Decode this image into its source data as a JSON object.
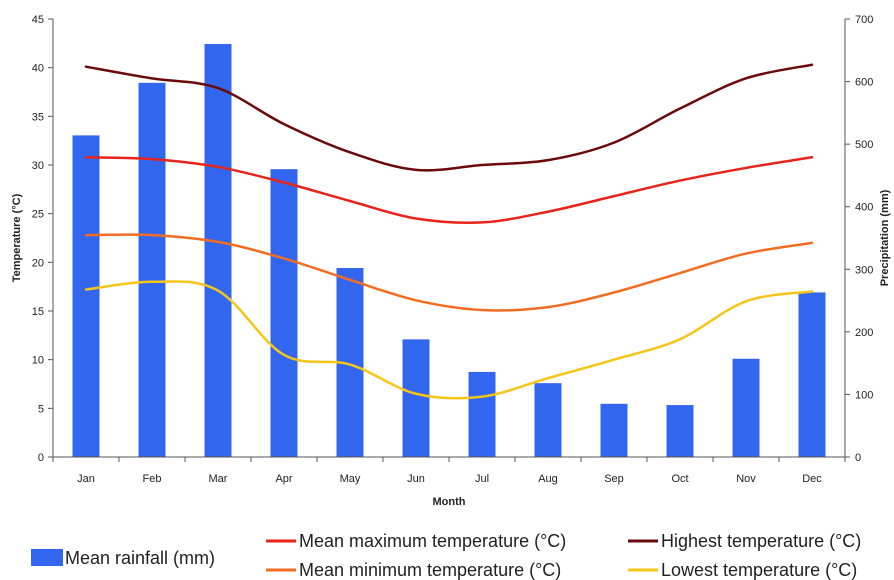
{
  "chart_data": {
    "type": "bar",
    "xlabel": "Month",
    "ylabel_left": "Temperature (°C)",
    "ylabel_right": "Precipitation (mm)",
    "categories": [
      "Jan",
      "Feb",
      "Mar",
      "Apr",
      "May",
      "Jun",
      "Jul",
      "Aug",
      "Sep",
      "Oct",
      "Nov",
      "Dec"
    ],
    "y_left_range": [
      0,
      45
    ],
    "y_left_ticks": [
      0,
      5,
      10,
      15,
      20,
      25,
      30,
      35,
      40,
      45
    ],
    "y_right_range": [
      0,
      700
    ],
    "y_right_ticks": [
      0,
      100,
      200,
      300,
      400,
      500,
      600,
      700
    ],
    "grid": false,
    "legend_position": "bottom",
    "bars": {
      "name": "Mean rainfall (mm)",
      "axis": "right",
      "color": "#3366ee",
      "values": [
        514,
        598,
        660,
        460,
        302,
        188,
        136,
        118,
        85,
        83,
        157,
        263
      ]
    },
    "series": [
      {
        "name": "Mean maximum temperature (°C)",
        "axis": "left",
        "type": "line",
        "color": "#e8231a",
        "values": [
          30.8,
          30.6,
          29.8,
          28.2,
          26.3,
          24.5,
          24.1,
          25.2,
          26.8,
          28.4,
          29.7,
          30.8
        ]
      },
      {
        "name": "Mean minimum temperature (°C)",
        "axis": "left",
        "type": "line",
        "color": "#f26d21",
        "values": [
          22.8,
          22.8,
          22.1,
          20.4,
          18.2,
          16.1,
          15.1,
          15.4,
          16.9,
          18.9,
          20.9,
          22.0
        ]
      },
      {
        "name": "Highest temperature (°C)",
        "axis": "left",
        "type": "line",
        "color": "#6b0a0a",
        "values": [
          40.1,
          38.9,
          37.9,
          34.2,
          31.3,
          29.5,
          30.0,
          30.5,
          32.3,
          35.8,
          38.9,
          40.3
        ]
      },
      {
        "name": "Lowest temperature (°C)",
        "axis": "left",
        "type": "line",
        "color": "#f5c518",
        "values": [
          17.2,
          18.0,
          17.1,
          10.5,
          9.5,
          6.5,
          6.2,
          8.1,
          10.0,
          12.1,
          16.0,
          17.0
        ]
      }
    ]
  }
}
